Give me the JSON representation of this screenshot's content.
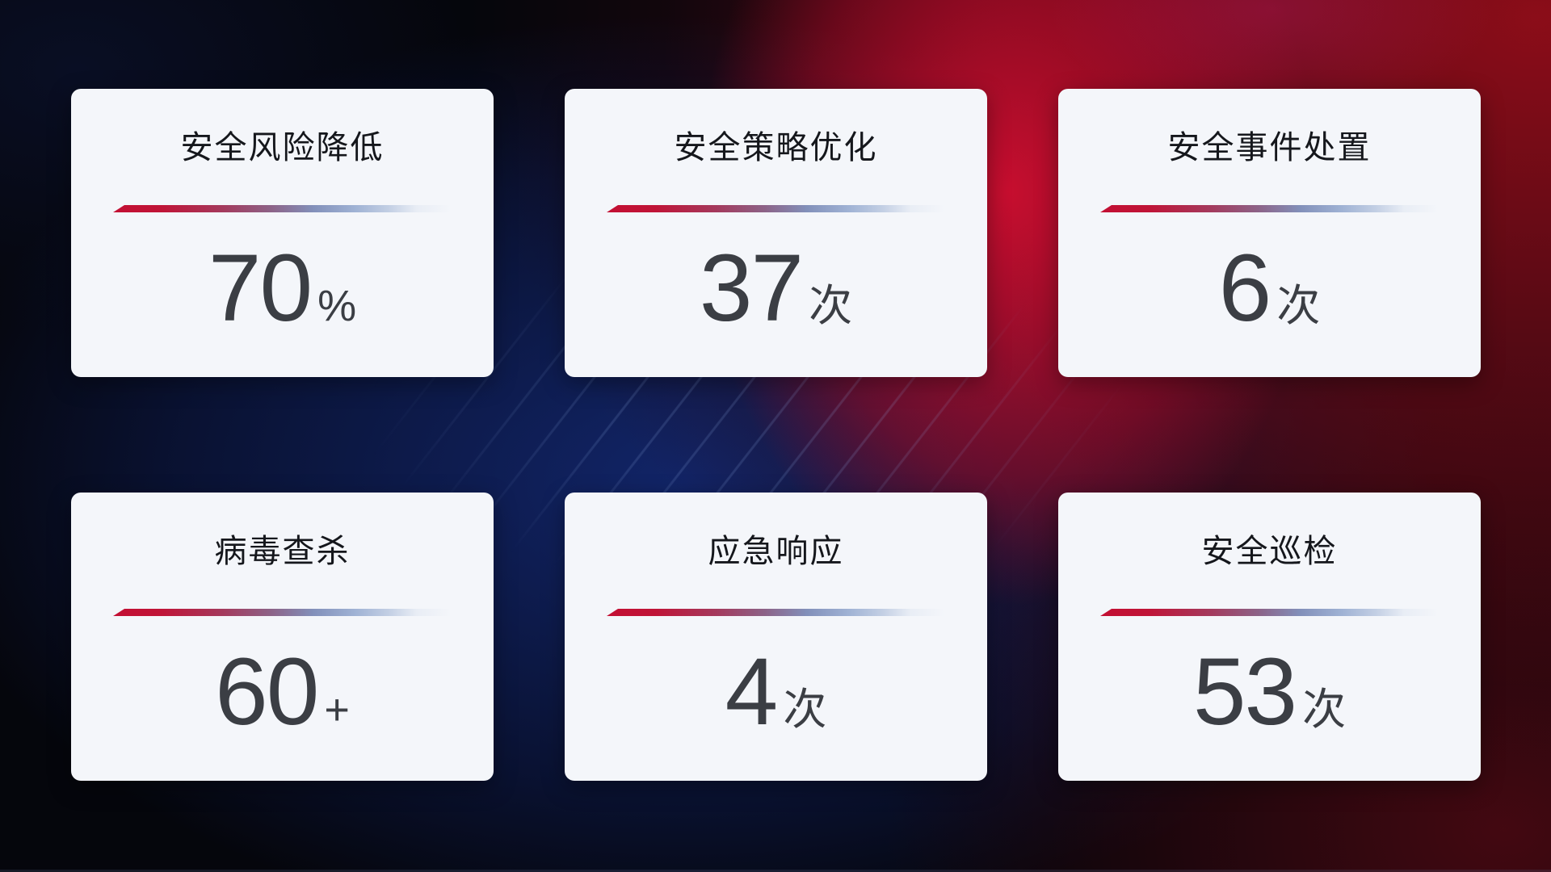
{
  "colors": {
    "card_background": "#f4f6fa",
    "title_text": "#15171c",
    "value_text": "#3b3e44",
    "divider_red": "#c30f33",
    "divider_blue": "#8290ba",
    "background_navy": "#12266c",
    "background_red": "#8e0d19",
    "background_black": "#05060c"
  },
  "cards": [
    {
      "title": "安全风险降低",
      "value": "70",
      "unit": "%"
    },
    {
      "title": "安全策略优化",
      "value": "37",
      "unit": "次"
    },
    {
      "title": "安全事件处置",
      "value": "6",
      "unit": "次"
    },
    {
      "title": "病毒查杀",
      "value": "60",
      "unit": "+"
    },
    {
      "title": "应急响应",
      "value": "4",
      "unit": "次"
    },
    {
      "title": "安全巡检",
      "value": "53",
      "unit": "次"
    }
  ]
}
